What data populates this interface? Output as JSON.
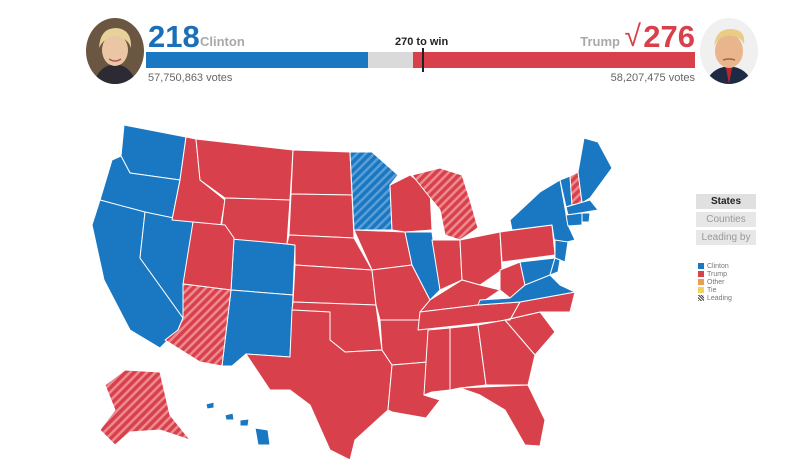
{
  "header": {
    "clinton": {
      "count": "218",
      "name": "Clinton",
      "votes": "57,750,863 votes",
      "color": "#1a78c2"
    },
    "trump": {
      "count": "276",
      "name": "Trump",
      "votes": "58,207,475 votes",
      "color": "#d8414b"
    },
    "check": "√",
    "threshold_label": "270 to win",
    "electoral_total": 538,
    "threshold": 270
  },
  "toggles": {
    "states": "States",
    "counties": "Counties",
    "leading": "Leading by"
  },
  "legend": [
    {
      "label": "Clinton",
      "color": "#1a78c2"
    },
    {
      "label": "Trump",
      "color": "#d8414b"
    },
    {
      "label": "Other",
      "color": "#e8a04e"
    },
    {
      "label": "Tie",
      "color": "#f3d25c"
    },
    {
      "label": "Leading",
      "color": "hatch"
    }
  ],
  "colors": {
    "clinton": "#1a78c2",
    "trump": "#d8414b",
    "border": "#ffffff"
  }
}
